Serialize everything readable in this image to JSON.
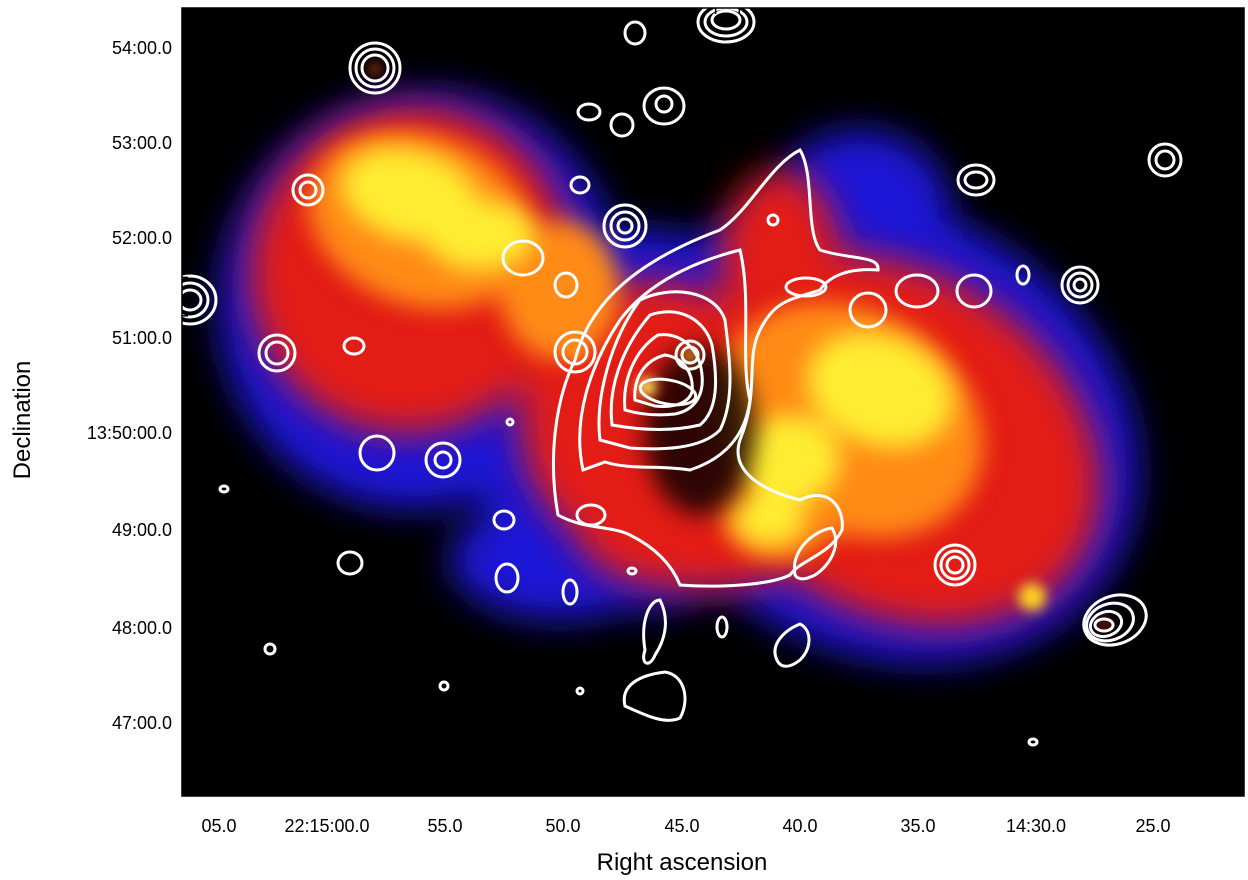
{
  "axes": {
    "xlabel": "Right ascension",
    "ylabel": "Declination",
    "x_ticks": [
      "05.0",
      "22:15:00.0",
      "55.0",
      "50.0",
      "45.0",
      "40.0",
      "35.0",
      "14:30.0",
      "25.0"
    ],
    "y_ticks": [
      "54:00.0",
      "53:00.0",
      "52:00.0",
      "51:00.0",
      "13:50:00.0",
      "49:00.0",
      "48:00.0",
      "47:00.0"
    ]
  },
  "image": {
    "background_color": "#000000",
    "colormap": [
      "#1a10d8",
      "#e81a10",
      "#ffb010",
      "#ffff40"
    ],
    "contour_color": "#ffffff"
  }
}
